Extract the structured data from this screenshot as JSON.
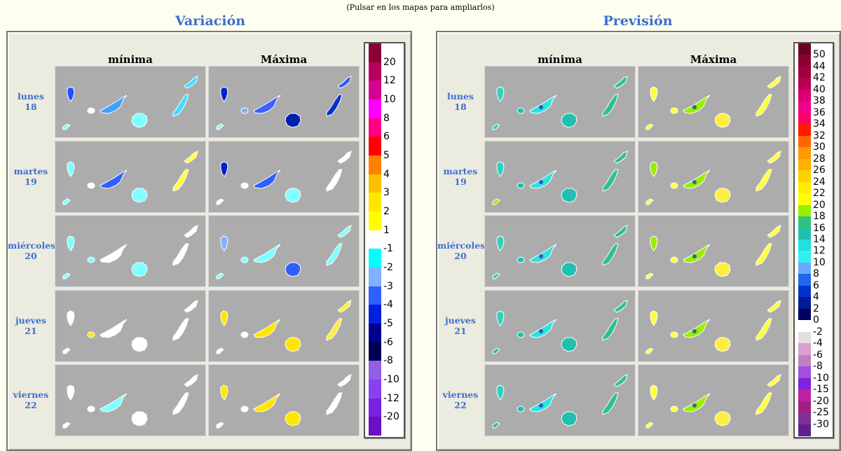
{
  "hint": "(Pulsar en los mapas para ampliarlos)",
  "panels": [
    {
      "title": "Variación",
      "columns": [
        "mínima",
        "Máxima"
      ],
      "scale_labels": [
        "20",
        "12",
        "10",
        "8",
        "6",
        "5",
        "4",
        "3",
        "2",
        "1",
        "-1",
        "-2",
        "-3",
        "-4",
        "-5",
        "-6",
        "-8",
        "-10",
        "-12",
        "-20"
      ],
      "scale_colors": [
        "#8a0033",
        "#b8005e",
        "#d8008e",
        "#ff00ff",
        "#ff0080",
        "#ff0000",
        "#ff8000",
        "#ffc000",
        "#ffe600",
        "#ffff00",
        "#ffffff",
        "#00ffff",
        "#80b0ff",
        "#3060ff",
        "#0020e0",
        "#000090",
        "#000050",
        "#9060e0",
        "#8a40f0",
        "#7a20e0",
        "#6a10c0"
      ],
      "maps": [
        {
          "min": "mv0",
          "max": "mx0"
        },
        {
          "min": "mv1",
          "max": "mx1"
        },
        {
          "min": "mv2",
          "max": "mx2"
        },
        {
          "min": "mv3",
          "max": "mx3"
        },
        {
          "min": "mv4",
          "max": "mx4"
        }
      ]
    },
    {
      "title": "Previsión",
      "columns": [
        "mínima",
        "Máxima"
      ],
      "scale_labels": [
        "50",
        "44",
        "42",
        "40",
        "38",
        "36",
        "34",
        "32",
        "30",
        "28",
        "26",
        "24",
        "22",
        "20",
        "18",
        "16",
        "14",
        "12",
        "10",
        "8",
        "6",
        "4",
        "2",
        "0",
        "-2",
        "-4",
        "-6",
        "-8",
        "-10",
        "-15",
        "-20",
        "-25",
        "-30"
      ],
      "scale_colors": [
        "#6a0020",
        "#8a0030",
        "#a00040",
        "#b80050",
        "#d80070",
        "#f0008a",
        "#ff0066",
        "#ff1a00",
        "#ff6600",
        "#ff9900",
        "#ffb000",
        "#ffd000",
        "#ffee00",
        "#ffff00",
        "#99ee00",
        "#30c080",
        "#20c0b0",
        "#20e0e0",
        "#30f0f0",
        "#66aaff",
        "#2266ee",
        "#0033cc",
        "#001a99",
        "#000060",
        "#ffffff",
        "#e0e0e0",
        "#d8a0d0",
        "#c080c0",
        "#a050e0",
        "#8020e0",
        "#c020a0",
        "#a02080",
        "#803090",
        "#602090"
      ],
      "maps": [
        {
          "min": "pv0",
          "max": "px0"
        },
        {
          "min": "pv1",
          "max": "px1"
        },
        {
          "min": "pv2",
          "max": "px2"
        },
        {
          "min": "pv3",
          "max": "px3"
        },
        {
          "min": "pv4",
          "max": "px4"
        }
      ]
    }
  ],
  "days": [
    {
      "name": "lunes",
      "num": "18"
    },
    {
      "name": "martes",
      "num": "19"
    },
    {
      "name": "miércoles",
      "num": "20"
    },
    {
      "name": "jueves",
      "num": "21"
    },
    {
      "name": "viernes",
      "num": "22"
    }
  ]
}
